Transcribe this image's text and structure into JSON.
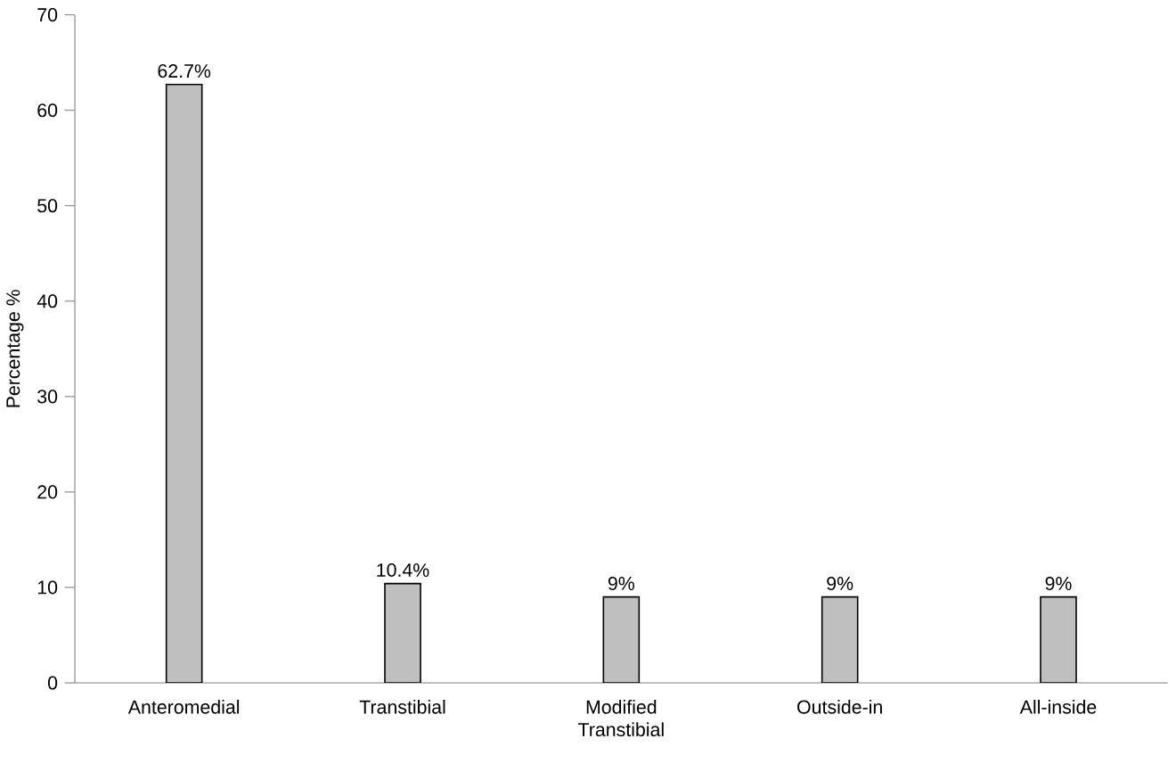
{
  "chart_data": {
    "type": "bar",
    "ylabel": "Percentage %",
    "categories": [
      "Anteromedial",
      "Transtibial",
      "Modified Transtibial",
      "Outside-in",
      "All-inside"
    ],
    "values": [
      62.7,
      10.4,
      9,
      9,
      9
    ],
    "value_labels": [
      "62.7%",
      "10.4%",
      "9%",
      "9%",
      "9%"
    ],
    "color": "#bfbfbf",
    "ylim": [
      0,
      70
    ],
    "yticks": [
      0,
      10,
      20,
      30,
      40,
      50,
      60,
      70
    ],
    "grid": false
  }
}
